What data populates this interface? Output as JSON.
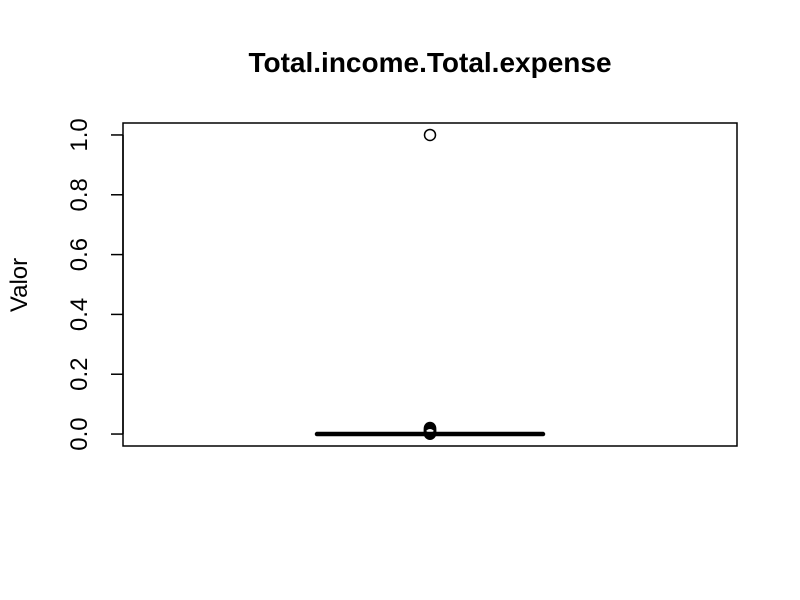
{
  "chart_data": {
    "type": "boxplot",
    "title": "Total.income.Total.expense",
    "xlabel": "",
    "ylabel": "Valor",
    "ylim": [
      -0.04,
      1.04
    ],
    "yticks": [
      0.0,
      0.2,
      0.4,
      0.6,
      0.8,
      1.0
    ],
    "ytick_labels": [
      "0.0",
      "0.2",
      "0.4",
      "0.6",
      "0.8",
      "1.0"
    ],
    "grid": false,
    "box": {
      "min": 0.0,
      "q1": 0.0,
      "median": 0.0,
      "q3": 0.0,
      "max": 0.0
    },
    "outliers": [
      1.0,
      0.02,
      0.017,
      0.014,
      0.011,
      0.008,
      0.005,
      0.003,
      0.001
    ]
  }
}
